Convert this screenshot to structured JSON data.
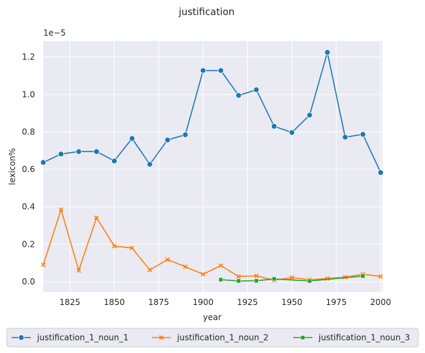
{
  "chart_data": {
    "type": "line",
    "title": "justification",
    "xlabel": "year",
    "ylabel": "lexicon%",
    "y_multiplier_label": "1e−5",
    "xlim": [
      1810,
      2001
    ],
    "ylim": [
      -0.055,
      1.285
    ],
    "xticks": [
      1825,
      1850,
      1875,
      1900,
      1925,
      1950,
      1975,
      2000
    ],
    "yticks": [
      0.0,
      0.2,
      0.4,
      0.6,
      0.8,
      1.0,
      1.2
    ],
    "ytick_labels": [
      "0.0",
      "0.2",
      "0.4",
      "0.6",
      "0.8",
      "1.0",
      "1.2"
    ],
    "grid": true,
    "legend_position": "bottom-center-outside",
    "series": [
      {
        "name": "justification_1_noun_1",
        "color": "#1f77b4",
        "marker": "circle",
        "x": [
          1810,
          1820,
          1830,
          1840,
          1850,
          1860,
          1870,
          1880,
          1890,
          1900,
          1910,
          1920,
          1930,
          1940,
          1950,
          1960,
          1970,
          1980,
          1990,
          2000
        ],
        "y": [
          0.637,
          0.682,
          0.695,
          0.695,
          0.645,
          0.765,
          0.627,
          0.757,
          0.785,
          1.128,
          1.128,
          0.995,
          1.025,
          0.83,
          0.797,
          0.89,
          1.225,
          0.772,
          0.787,
          0.583
        ]
      },
      {
        "name": "justification_1_noun_2",
        "color": "#ff7f0e",
        "marker": "x",
        "x": [
          1810,
          1820,
          1830,
          1840,
          1850,
          1860,
          1870,
          1880,
          1890,
          1900,
          1910,
          1920,
          1930,
          1940,
          1950,
          1960,
          1970,
          1980,
          1990,
          2000
        ],
        "y": [
          0.09,
          0.385,
          0.06,
          0.342,
          0.19,
          0.18,
          0.063,
          0.118,
          0.08,
          0.04,
          0.086,
          0.028,
          0.031,
          0.008,
          0.022,
          0.011,
          0.017,
          0.024,
          0.04,
          0.028
        ]
      },
      {
        "name": "justification_1_noun_3",
        "color": "#2ca02c",
        "marker": "square",
        "x": [
          1910,
          1920,
          1930,
          1940,
          1960,
          1990
        ],
        "y": [
          0.011,
          0.004,
          0.005,
          0.015,
          0.004,
          0.03
        ]
      }
    ]
  }
}
